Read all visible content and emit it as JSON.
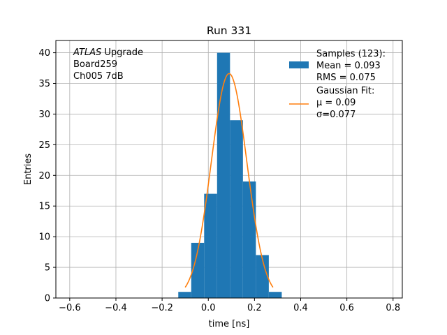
{
  "chart_data": {
    "type": "bar",
    "title": "Run 331",
    "xlabel": "time [ns]",
    "ylabel": "Entries",
    "xlim": [
      -0.66,
      0.84
    ],
    "ylim": [
      0,
      42
    ],
    "grid": true,
    "xticks": [
      -0.6,
      -0.4,
      -0.2,
      0.0,
      0.2,
      0.4,
      0.6,
      0.8
    ],
    "xtick_labels": [
      "−0.6",
      "−0.4",
      "−0.2",
      "0.0",
      "0.2",
      "0.4",
      "0.6",
      "0.8"
    ],
    "yticks": [
      0,
      5,
      10,
      15,
      20,
      25,
      30,
      35,
      40
    ],
    "ytick_labels": [
      "0",
      "5",
      "10",
      "15",
      "20",
      "25",
      "30",
      "35",
      "40"
    ],
    "histogram": {
      "name": "Samples (123):",
      "color": "#1f77b4",
      "bin_edges": [
        -0.13,
        -0.074,
        -0.018,
        0.038,
        0.094,
        0.15,
        0.206,
        0.262,
        0.318
      ],
      "counts": [
        1,
        9,
        17,
        40,
        29,
        19,
        7,
        1
      ]
    },
    "fit": {
      "name": "Gaussian Fit:",
      "color": "#ff7f0e",
      "mu": 0.09,
      "sigma": 0.077,
      "peak": 36.6,
      "x_range": [
        -0.1,
        0.28
      ]
    },
    "annotation_lines": [
      {
        "italic": "ATLAS",
        "rest": " Upgrade"
      },
      {
        "italic": "",
        "rest": " Board259"
      },
      {
        "italic": "",
        "rest": " Ch005 7dB"
      }
    ],
    "legend": {
      "placement": "upper right",
      "hist_lines": [
        "Samples (123):",
        " Mean = 0.093",
        " RMS = 0.075"
      ],
      "fit_lines": [
        "Gaussian Fit:",
        " μ = 0.09",
        " σ=0.077"
      ]
    }
  }
}
